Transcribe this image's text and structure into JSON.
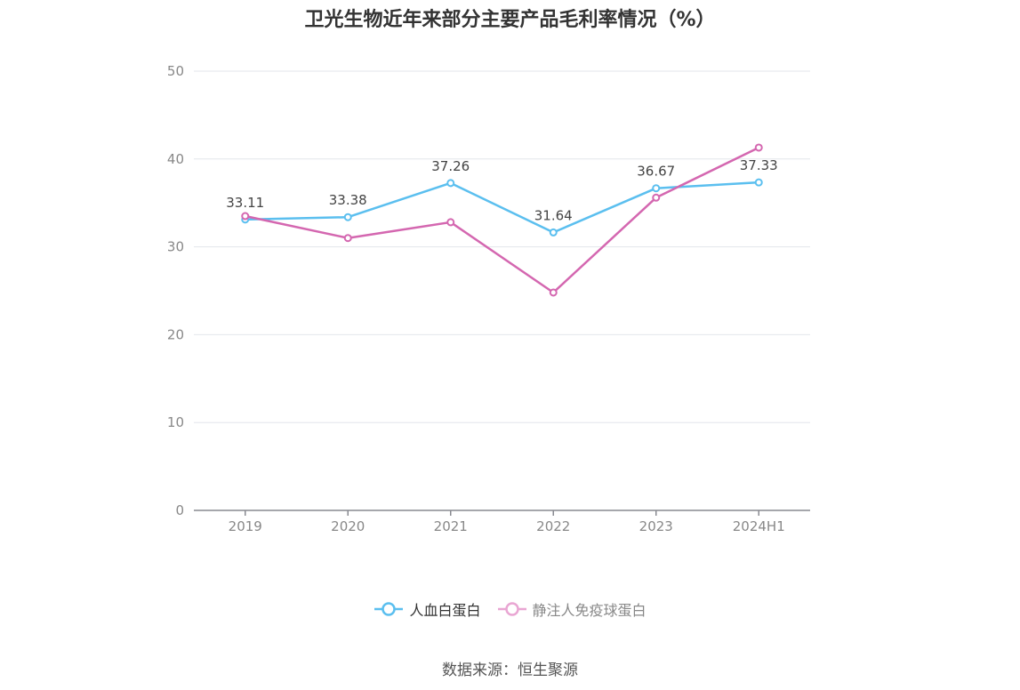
{
  "chart_data": {
    "type": "line",
    "title": "卫光生物近年来部分主要产品毛利率情况（%）",
    "categories": [
      "2019",
      "2020",
      "2021",
      "2022",
      "2023",
      "2024H1"
    ],
    "series": [
      {
        "name": "人血白蛋白",
        "values": [
          33.11,
          33.38,
          37.26,
          31.64,
          36.67,
          37.33
        ],
        "color": "#5bbfef",
        "labeled": true
      },
      {
        "name": "静注人免疫球蛋白",
        "values": [
          33.5,
          31.0,
          32.8,
          24.8,
          35.6,
          41.3
        ],
        "color": "#d467b0",
        "labeled": false
      }
    ],
    "ylim": [
      0,
      50
    ],
    "yticks": [
      0,
      10,
      20,
      30,
      40,
      50
    ],
    "grid": true,
    "legend_position": "bottom"
  },
  "source": "数据来源：恒生聚源"
}
